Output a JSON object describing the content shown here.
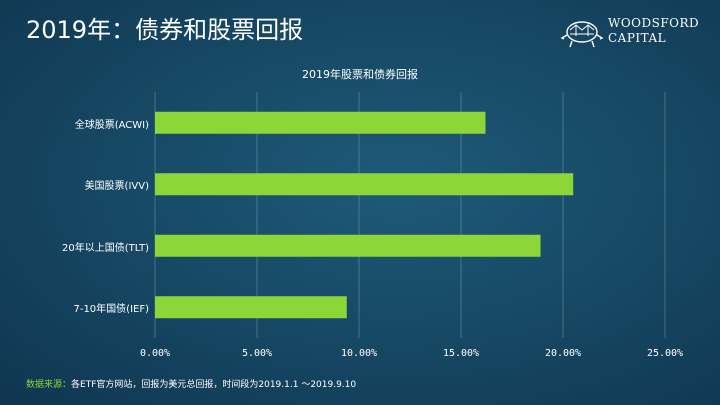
{
  "slide": {
    "title": "2019年：债券和股票回报",
    "logo_line1": "WOODSFORD",
    "logo_line2": "CAPITAL",
    "logo_icon": "turtle-icon",
    "source_label": "数据来源：",
    "source_text": "各ETF官方网站，回报为美元总回报，时间段为2019.1.1 ～2019.9.10"
  },
  "chart_data": {
    "type": "bar",
    "orientation": "horizontal",
    "title": "2019年股票和债券回报",
    "categories": [
      "全球股票(ACWI)",
      "美国股票(IVV)",
      "20年以上国债(TLT)",
      "7-10年国债(IEF)"
    ],
    "values": [
      16.2,
      20.5,
      18.9,
      9.4
    ],
    "value_unit": "%",
    "xlim": [
      0,
      25
    ],
    "xticks": [
      "0.00%",
      "5.00%",
      "10.00%",
      "15.00%",
      "20.00%",
      "25.00%"
    ],
    "grid": true,
    "legend": "none",
    "bar_color": "#8dd63a"
  }
}
